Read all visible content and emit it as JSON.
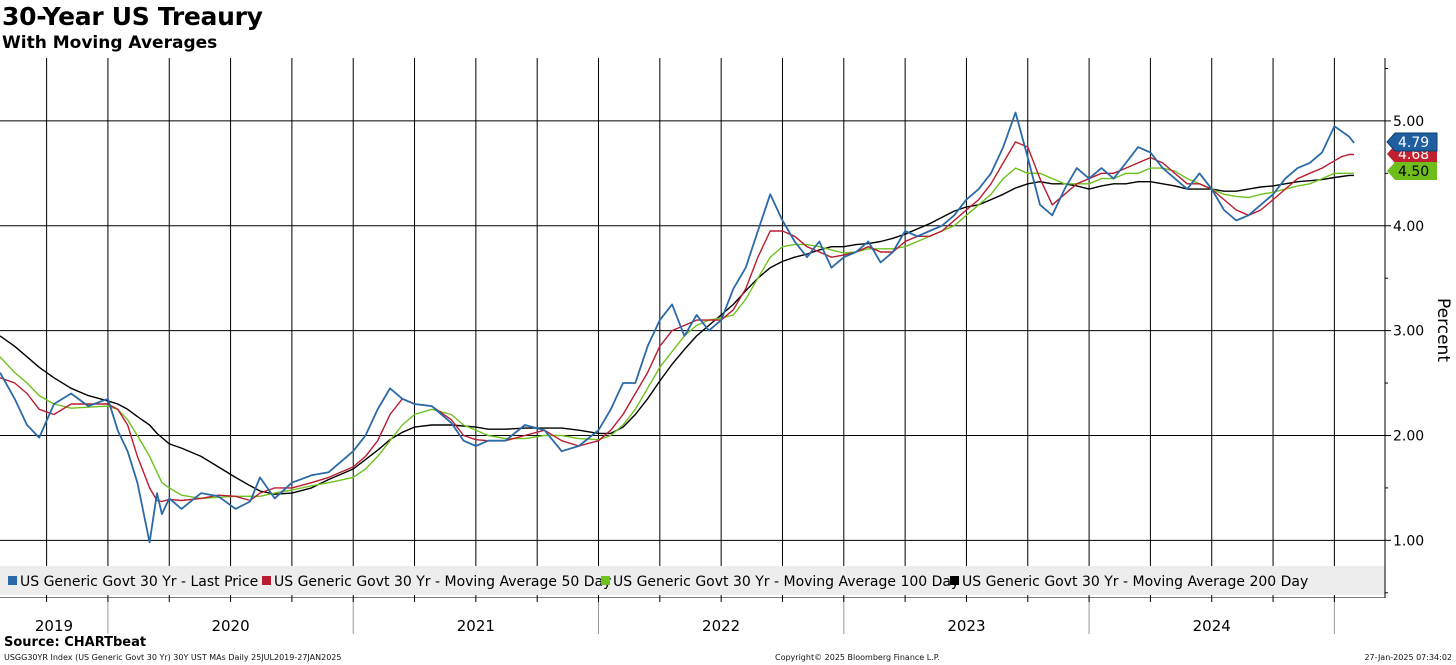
{
  "chart_data": {
    "type": "line",
    "title": "30-Year US Treaury",
    "subtitle": "With Moving Averages",
    "ylabel": "Percent",
    "xlabel": "",
    "ylim": [
      0.45,
      5.6
    ],
    "xlim": [
      2019.56,
      2025.08
    ],
    "y_ticks": [
      1.0,
      2.0,
      3.0,
      4.0,
      5.0
    ],
    "y_tick_labels": [
      "1.00",
      "2.00",
      "3.00",
      "4.00",
      "5.00"
    ],
    "x_year_labels": [
      {
        "label": "2019",
        "x": 2019.78
      },
      {
        "label": "2020",
        "x": 2020.5
      },
      {
        "label": "2021",
        "x": 2021.5
      },
      {
        "label": "2022",
        "x": 2022.5
      },
      {
        "label": "2023",
        "x": 2023.5
      },
      {
        "label": "2024",
        "x": 2024.5
      }
    ],
    "x_year_boundaries": [
      2020.0,
      2021.0,
      2022.0,
      2023.0,
      2024.0,
      2025.0
    ],
    "grid": true,
    "legend_position": "bottom-left",
    "series": [
      {
        "name": "US Generic Govt 30 Yr - Last Price",
        "color": "#2b6aa8",
        "last_label": "4.79",
        "label_color": "#1f5fa0",
        "x": [
          2019.56,
          2019.62,
          2019.67,
          2019.72,
          2019.78,
          2019.85,
          2019.92,
          2020.0,
          2020.04,
          2020.08,
          2020.12,
          2020.17,
          2020.2,
          2020.22,
          2020.25,
          2020.3,
          2020.38,
          2020.45,
          2020.52,
          2020.58,
          2020.62,
          2020.68,
          2020.75,
          2020.83,
          2020.9,
          2021.0,
          2021.05,
          2021.1,
          2021.15,
          2021.2,
          2021.25,
          2021.32,
          2021.4,
          2021.45,
          2021.5,
          2021.55,
          2021.62,
          2021.7,
          2021.78,
          2021.85,
          2021.92,
          2022.0,
          2022.05,
          2022.1,
          2022.15,
          2022.2,
          2022.25,
          2022.3,
          2022.35,
          2022.4,
          2022.45,
          2022.5,
          2022.55,
          2022.6,
          2022.65,
          2022.7,
          2022.75,
          2022.8,
          2022.85,
          2022.9,
          2022.95,
          2023.0,
          2023.05,
          2023.1,
          2023.15,
          2023.2,
          2023.25,
          2023.3,
          2023.35,
          2023.4,
          2023.45,
          2023.5,
          2023.55,
          2023.6,
          2023.65,
          2023.7,
          2023.75,
          2023.8,
          2023.85,
          2023.9,
          2023.95,
          2024.0,
          2024.05,
          2024.1,
          2024.15,
          2024.2,
          2024.25,
          2024.3,
          2024.35,
          2024.4,
          2024.45,
          2024.5,
          2024.55,
          2024.6,
          2024.65,
          2024.7,
          2024.75,
          2024.8,
          2024.85,
          2024.9,
          2024.95,
          2025.0,
          2025.03,
          2025.06,
          2025.08
        ],
        "values": [
          2.6,
          2.35,
          2.1,
          1.98,
          2.3,
          2.4,
          2.28,
          2.35,
          2.05,
          1.85,
          1.55,
          0.98,
          1.45,
          1.25,
          1.4,
          1.3,
          1.45,
          1.42,
          1.3,
          1.37,
          1.6,
          1.4,
          1.55,
          1.62,
          1.65,
          1.85,
          2.0,
          2.25,
          2.45,
          2.35,
          2.3,
          2.28,
          2.12,
          1.95,
          1.9,
          1.95,
          1.95,
          2.1,
          2.05,
          1.85,
          1.9,
          2.05,
          2.25,
          2.5,
          2.5,
          2.85,
          3.1,
          3.25,
          2.95,
          3.15,
          3.0,
          3.1,
          3.4,
          3.6,
          3.95,
          4.3,
          4.05,
          3.85,
          3.7,
          3.85,
          3.6,
          3.7,
          3.75,
          3.85,
          3.65,
          3.75,
          3.95,
          3.9,
          3.95,
          4.0,
          4.1,
          4.25,
          4.35,
          4.5,
          4.75,
          5.08,
          4.65,
          4.2,
          4.1,
          4.35,
          4.55,
          4.45,
          4.55,
          4.45,
          4.6,
          4.75,
          4.7,
          4.55,
          4.45,
          4.35,
          4.5,
          4.35,
          4.15,
          4.05,
          4.1,
          4.2,
          4.3,
          4.45,
          4.55,
          4.6,
          4.7,
          4.95,
          4.9,
          4.85,
          4.79
        ]
      },
      {
        "name": "US Generic Govt 30 Yr - Moving Average 50 Day",
        "color": "#b81c30",
        "last_label": "4.68",
        "label_color": "#c0202f",
        "x": [
          2019.56,
          2019.62,
          2019.67,
          2019.72,
          2019.78,
          2019.85,
          2019.92,
          2020.0,
          2020.04,
          2020.08,
          2020.12,
          2020.17,
          2020.2,
          2020.22,
          2020.25,
          2020.3,
          2020.38,
          2020.45,
          2020.52,
          2020.58,
          2020.62,
          2020.68,
          2020.75,
          2020.83,
          2020.9,
          2021.0,
          2021.05,
          2021.1,
          2021.15,
          2021.2,
          2021.25,
          2021.32,
          2021.4,
          2021.45,
          2021.5,
          2021.55,
          2021.62,
          2021.7,
          2021.78,
          2021.85,
          2021.92,
          2022.0,
          2022.05,
          2022.1,
          2022.15,
          2022.2,
          2022.25,
          2022.3,
          2022.35,
          2022.4,
          2022.45,
          2022.5,
          2022.55,
          2022.6,
          2022.65,
          2022.7,
          2022.75,
          2022.8,
          2022.85,
          2022.9,
          2022.95,
          2023.0,
          2023.05,
          2023.1,
          2023.15,
          2023.2,
          2023.25,
          2023.3,
          2023.35,
          2023.4,
          2023.45,
          2023.5,
          2023.55,
          2023.6,
          2023.65,
          2023.7,
          2023.75,
          2023.8,
          2023.85,
          2023.9,
          2023.95,
          2024.0,
          2024.05,
          2024.1,
          2024.15,
          2024.2,
          2024.25,
          2024.3,
          2024.35,
          2024.4,
          2024.45,
          2024.5,
          2024.55,
          2024.6,
          2024.65,
          2024.7,
          2024.75,
          2024.8,
          2024.85,
          2024.9,
          2024.95,
          2025.0,
          2025.03,
          2025.06,
          2025.08
        ],
        "values": [
          2.55,
          2.5,
          2.4,
          2.25,
          2.2,
          2.3,
          2.3,
          2.3,
          2.25,
          2.1,
          1.8,
          1.5,
          1.38,
          1.37,
          1.39,
          1.38,
          1.4,
          1.43,
          1.42,
          1.38,
          1.45,
          1.5,
          1.5,
          1.55,
          1.6,
          1.7,
          1.8,
          1.95,
          2.2,
          2.35,
          2.3,
          2.28,
          2.15,
          2.0,
          1.96,
          1.95,
          1.95,
          2.0,
          2.05,
          1.95,
          1.9,
          1.95,
          2.05,
          2.2,
          2.4,
          2.6,
          2.85,
          3.0,
          3.05,
          3.1,
          3.1,
          3.1,
          3.2,
          3.4,
          3.7,
          3.95,
          3.95,
          3.9,
          3.8,
          3.75,
          3.7,
          3.72,
          3.75,
          3.8,
          3.75,
          3.75,
          3.85,
          3.9,
          3.9,
          3.95,
          4.05,
          4.15,
          4.25,
          4.4,
          4.6,
          4.8,
          4.75,
          4.45,
          4.2,
          4.3,
          4.4,
          4.45,
          4.5,
          4.5,
          4.55,
          4.6,
          4.65,
          4.6,
          4.5,
          4.4,
          4.4,
          4.35,
          4.25,
          4.15,
          4.1,
          4.15,
          4.25,
          4.35,
          4.45,
          4.5,
          4.55,
          4.62,
          4.66,
          4.68,
          4.68
        ]
      },
      {
        "name": "US Generic Govt 30 Yr - Moving Average 100 Day",
        "color": "#6fc21e",
        "last_label": "4.50",
        "label_color": "#6fbd1b",
        "x": [
          2019.56,
          2019.62,
          2019.67,
          2019.72,
          2019.78,
          2019.85,
          2019.92,
          2020.0,
          2020.04,
          2020.08,
          2020.12,
          2020.17,
          2020.2,
          2020.22,
          2020.25,
          2020.3,
          2020.38,
          2020.45,
          2020.52,
          2020.58,
          2020.62,
          2020.68,
          2020.75,
          2020.83,
          2020.9,
          2021.0,
          2021.05,
          2021.1,
          2021.15,
          2021.2,
          2021.25,
          2021.32,
          2021.4,
          2021.45,
          2021.5,
          2021.55,
          2021.62,
          2021.7,
          2021.78,
          2021.85,
          2021.92,
          2022.0,
          2022.05,
          2022.1,
          2022.15,
          2022.2,
          2022.25,
          2022.3,
          2022.35,
          2022.4,
          2022.45,
          2022.5,
          2022.55,
          2022.6,
          2022.65,
          2022.7,
          2022.75,
          2022.8,
          2022.85,
          2022.9,
          2022.95,
          2023.0,
          2023.05,
          2023.1,
          2023.15,
          2023.2,
          2023.25,
          2023.3,
          2023.35,
          2023.4,
          2023.45,
          2023.5,
          2023.55,
          2023.6,
          2023.65,
          2023.7,
          2023.75,
          2023.8,
          2023.85,
          2023.9,
          2023.95,
          2024.0,
          2024.05,
          2024.1,
          2024.15,
          2024.2,
          2024.25,
          2024.3,
          2024.35,
          2024.4,
          2024.45,
          2024.5,
          2024.55,
          2024.6,
          2024.65,
          2024.7,
          2024.75,
          2024.8,
          2024.85,
          2024.9,
          2024.95,
          2025.0,
          2025.03,
          2025.06,
          2025.08
        ],
        "values": [
          2.75,
          2.6,
          2.5,
          2.38,
          2.3,
          2.26,
          2.27,
          2.28,
          2.25,
          2.15,
          2.0,
          1.8,
          1.65,
          1.55,
          1.5,
          1.43,
          1.4,
          1.41,
          1.42,
          1.42,
          1.42,
          1.45,
          1.48,
          1.52,
          1.55,
          1.6,
          1.68,
          1.8,
          1.95,
          2.1,
          2.2,
          2.25,
          2.2,
          2.1,
          2.05,
          2.0,
          1.97,
          1.97,
          2.0,
          2.0,
          1.97,
          1.96,
          2.0,
          2.1,
          2.25,
          2.45,
          2.65,
          2.8,
          2.95,
          3.05,
          3.1,
          3.12,
          3.15,
          3.3,
          3.5,
          3.7,
          3.8,
          3.82,
          3.82,
          3.8,
          3.77,
          3.74,
          3.75,
          3.78,
          3.78,
          3.78,
          3.8,
          3.85,
          3.9,
          3.95,
          4.0,
          4.1,
          4.2,
          4.3,
          4.45,
          4.55,
          4.5,
          4.5,
          4.45,
          4.4,
          4.4,
          4.4,
          4.45,
          4.45,
          4.5,
          4.5,
          4.55,
          4.55,
          4.52,
          4.45,
          4.4,
          4.35,
          4.3,
          4.28,
          4.27,
          4.3,
          4.32,
          4.35,
          4.38,
          4.4,
          4.45,
          4.5,
          4.5,
          4.5,
          4.5
        ]
      },
      {
        "name": "US Generic Govt 30 Yr - Moving Average 200 Day",
        "color": "#000000",
        "last_label": "",
        "label_color": "#000000",
        "x": [
          2019.56,
          2019.62,
          2019.67,
          2019.72,
          2019.78,
          2019.85,
          2019.92,
          2020.0,
          2020.04,
          2020.08,
          2020.12,
          2020.17,
          2020.2,
          2020.22,
          2020.25,
          2020.3,
          2020.38,
          2020.45,
          2020.52,
          2020.58,
          2020.62,
          2020.68,
          2020.75,
          2020.83,
          2020.9,
          2021.0,
          2021.05,
          2021.1,
          2021.15,
          2021.2,
          2021.25,
          2021.32,
          2021.4,
          2021.45,
          2021.5,
          2021.55,
          2021.62,
          2021.7,
          2021.78,
          2021.85,
          2021.92,
          2022.0,
          2022.05,
          2022.1,
          2022.15,
          2022.2,
          2022.25,
          2022.3,
          2022.35,
          2022.4,
          2022.45,
          2022.5,
          2022.55,
          2022.6,
          2022.65,
          2022.7,
          2022.75,
          2022.8,
          2022.85,
          2022.9,
          2022.95,
          2023.0,
          2023.05,
          2023.1,
          2023.15,
          2023.2,
          2023.25,
          2023.3,
          2023.35,
          2023.4,
          2023.45,
          2023.5,
          2023.55,
          2023.6,
          2023.65,
          2023.7,
          2023.75,
          2023.8,
          2023.85,
          2023.9,
          2023.95,
          2024.0,
          2024.05,
          2024.1,
          2024.15,
          2024.2,
          2024.25,
          2024.3,
          2024.35,
          2024.4,
          2024.45,
          2024.5,
          2024.55,
          2024.6,
          2024.65,
          2024.7,
          2024.75,
          2024.8,
          2024.85,
          2024.9,
          2024.95,
          2025.0,
          2025.03,
          2025.06,
          2025.08
        ],
        "values": [
          2.95,
          2.85,
          2.75,
          2.65,
          2.55,
          2.45,
          2.38,
          2.33,
          2.3,
          2.25,
          2.18,
          2.1,
          2.02,
          1.98,
          1.92,
          1.88,
          1.8,
          1.7,
          1.6,
          1.52,
          1.47,
          1.44,
          1.45,
          1.5,
          1.58,
          1.68,
          1.77,
          1.86,
          1.96,
          2.03,
          2.08,
          2.1,
          2.1,
          2.09,
          2.08,
          2.06,
          2.06,
          2.07,
          2.07,
          2.07,
          2.05,
          2.02,
          2.02,
          2.08,
          2.2,
          2.35,
          2.52,
          2.68,
          2.82,
          2.95,
          3.05,
          3.15,
          3.25,
          3.38,
          3.5,
          3.6,
          3.66,
          3.7,
          3.73,
          3.77,
          3.8,
          3.8,
          3.82,
          3.83,
          3.85,
          3.88,
          3.92,
          3.97,
          4.02,
          4.08,
          4.14,
          4.18,
          4.2,
          4.25,
          4.3,
          4.36,
          4.4,
          4.42,
          4.4,
          4.4,
          4.38,
          4.35,
          4.38,
          4.4,
          4.4,
          4.42,
          4.42,
          4.4,
          4.38,
          4.35,
          4.35,
          4.35,
          4.33,
          4.33,
          4.35,
          4.37,
          4.38,
          4.4,
          4.42,
          4.43,
          4.44,
          4.46,
          4.47,
          4.48,
          4.48
        ]
      }
    ]
  },
  "footer": {
    "source": "Source: CHARTbeat",
    "left": "USGG30YR Index (US Generic Govt 30 Yr) 30Y UST MAs  Daily 25JUL2019-27JAN2025",
    "middle": "Copyright© 2025 Bloomberg Finance L.P.",
    "right": "27-Jan-2025 07:34:02"
  }
}
